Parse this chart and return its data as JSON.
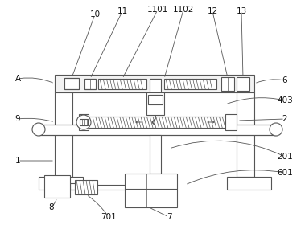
{
  "bg_color": "#ffffff",
  "lc": "#555555",
  "lw": 0.8,
  "fig_w": 3.79,
  "fig_h": 2.85,
  "dpi": 100
}
